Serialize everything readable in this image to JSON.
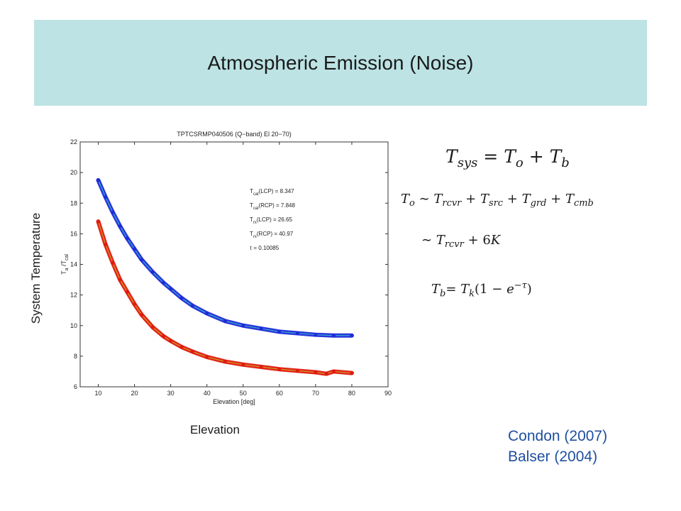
{
  "slide": {
    "title": "Atmospheric Emission (Noise)",
    "y_axis_label": "System Temperature",
    "x_axis_label": "Elevation",
    "references": [
      "Condon (2007)",
      "Balser (2004)"
    ]
  },
  "equations": {
    "eq1": {
      "lhs": "T",
      "lhs_sub": "sys",
      "t1": "T",
      "t1_sub": "o",
      "t2": "T",
      "t2_sub": "b"
    },
    "eq2": {
      "lhs": "T",
      "lhs_sub": "o",
      "a": "T",
      "a_sub": "rcvr",
      "b": "T",
      "b_sub": "src",
      "c": "T",
      "c_sub": "grd",
      "d": "T",
      "d_sub": "cmb"
    },
    "eq3": {
      "a": "T",
      "a_sub": "rcvr",
      "const": "6",
      "unit": "K"
    },
    "eq4": {
      "lhs": "T",
      "lhs_sub": "b",
      "rhs": "T",
      "rhs_sub": "k",
      "one": "1",
      "e": "e",
      "exp": "−τ"
    }
  },
  "colors": {
    "title_band": "#bde3e4",
    "series_lcp": "#1f2bd8",
    "series_rcp": "#e01a0f",
    "fit_lcp": "#33c0c8",
    "fit_rcp": "#c8b020",
    "references": "#1f4fa0"
  },
  "chart_data": {
    "type": "scatter",
    "title": "TPTCSRMP040506 (Q−band) El 20−70)",
    "xlabel": "Elevation [deg]",
    "ylabel_base": "T",
    "ylabel_sub": "a",
    "ylabel_mid": " /T",
    "ylabel_sub2": "cal",
    "xlim": [
      5,
      90
    ],
    "ylim": [
      6,
      22
    ],
    "xticks": [
      10,
      20,
      30,
      40,
      50,
      60,
      70,
      80,
      90
    ],
    "yticks": [
      6,
      8,
      10,
      12,
      14,
      16,
      18,
      20,
      22
    ],
    "grid": false,
    "series": [
      {
        "x": [
          10,
          12,
          14,
          16,
          18,
          20,
          22,
          25,
          28,
          30,
          33,
          36,
          40,
          45,
          50,
          55,
          60,
          65,
          70,
          75,
          80
        ],
        "y": [
          19.5,
          18.4,
          17.4,
          16.5,
          15.7,
          15.0,
          14.3,
          13.5,
          12.8,
          12.4,
          11.8,
          11.3,
          10.8,
          10.3,
          10.0,
          9.8,
          9.6,
          9.5,
          9.4,
          9.35,
          9.35
        ]
      },
      {
        "x": [
          10,
          12,
          14,
          16,
          18,
          20,
          22,
          25,
          28,
          30,
          33,
          36,
          40,
          45,
          50,
          55,
          60,
          65,
          70,
          73,
          75,
          80
        ],
        "y": [
          16.8,
          15.3,
          14.1,
          13.0,
          12.2,
          11.4,
          10.7,
          9.9,
          9.3,
          9.0,
          8.6,
          8.3,
          7.95,
          7.65,
          7.45,
          7.3,
          7.15,
          7.05,
          6.95,
          6.85,
          7.0,
          6.9
        ]
      }
    ],
    "annotations": [
      {
        "base": "T",
        "sub": "cal",
        "tag": "(LCP)",
        "value": " = 8.347"
      },
      {
        "base": "T",
        "sub": "cal",
        "tag": "(RCP)",
        "value": " = 7.848"
      },
      {
        "base": "T",
        "sub": "rx",
        "tag": "(LCP)",
        "value": " = 26.65"
      },
      {
        "base": "T",
        "sub": "rx",
        "tag": "(RCP)",
        "value": " = 40.97"
      },
      {
        "base": "τ",
        "sub": "",
        "tag": "",
        "value": " = 0.10085"
      }
    ]
  }
}
